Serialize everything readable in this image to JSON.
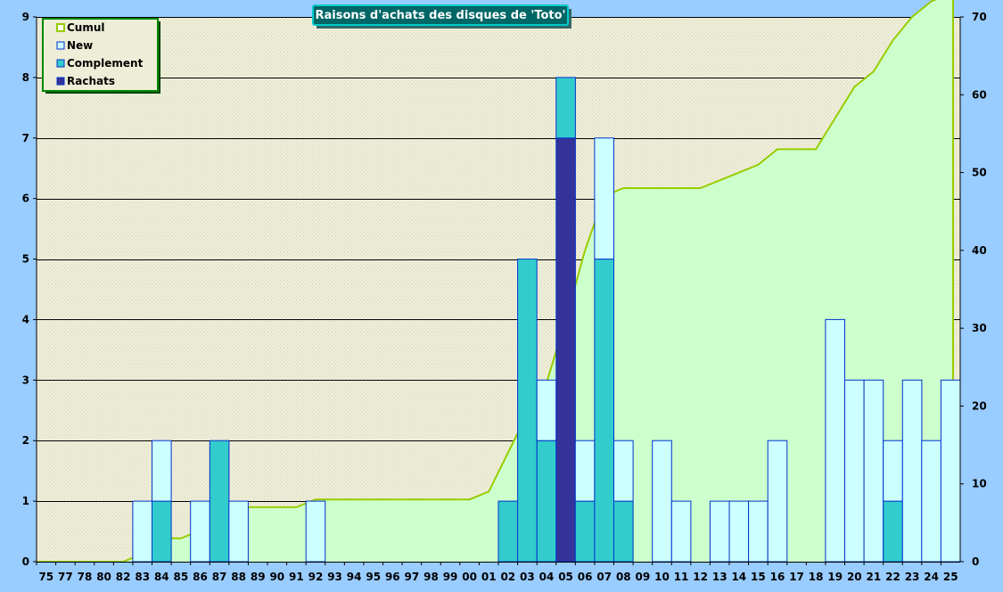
{
  "chart_data": {
    "type": "bar",
    "title": "Raisons d'achats des disques de 'Toto'",
    "categories": [
      "75",
      "77",
      "78",
      "80",
      "82",
      "83",
      "84",
      "85",
      "86",
      "87",
      "88",
      "89",
      "90",
      "91",
      "92",
      "93",
      "94",
      "95",
      "96",
      "97",
      "98",
      "99",
      "00",
      "01",
      "02",
      "03",
      "04",
      "05",
      "06",
      "07",
      "08",
      "09",
      "10",
      "11",
      "12",
      "13",
      "14",
      "15",
      "16",
      "17",
      "18",
      "19",
      "20",
      "21",
      "22",
      "23",
      "24",
      "25"
    ],
    "stacked": true,
    "series": [
      {
        "name": "Rachats",
        "axis": "left",
        "values": [
          0,
          0,
          0,
          0,
          0,
          0,
          0,
          0,
          0,
          0,
          0,
          0,
          0,
          0,
          0,
          0,
          0,
          0,
          0,
          0,
          0,
          0,
          0,
          0,
          0,
          0,
          0,
          7,
          0,
          0,
          0,
          0,
          0,
          0,
          0,
          0,
          0,
          0,
          0,
          0,
          0,
          0,
          0,
          0,
          0,
          0,
          0,
          0
        ]
      },
      {
        "name": "Complement",
        "axis": "left",
        "values": [
          0,
          0,
          0,
          0,
          0,
          0,
          1,
          0,
          0,
          2,
          0,
          0,
          0,
          0,
          0,
          0,
          0,
          0,
          0,
          0,
          0,
          0,
          0,
          0,
          1,
          5,
          2,
          1,
          1,
          5,
          1,
          0,
          0,
          0,
          0,
          0,
          0,
          0,
          0,
          0,
          0,
          0,
          0,
          0,
          1,
          0,
          0,
          0
        ]
      },
      {
        "name": "New",
        "axis": "left",
        "values": [
          0,
          0,
          0,
          0,
          0,
          1,
          1,
          0,
          1,
          0,
          1,
          0,
          0,
          0,
          1,
          0,
          0,
          0,
          0,
          0,
          0,
          0,
          0,
          0,
          0,
          0,
          1,
          0,
          1,
          2,
          1,
          0,
          2,
          1,
          0,
          1,
          1,
          1,
          2,
          0,
          0,
          4,
          3,
          3,
          1,
          3,
          2,
          3
        ]
      },
      {
        "name": "Cumul",
        "type": "area",
        "axis": "right",
        "values": [
          0,
          0,
          0,
          0,
          0,
          1,
          3,
          3,
          4,
          6,
          7,
          7,
          7,
          7,
          8,
          8,
          8,
          8,
          8,
          8,
          8,
          8,
          8,
          9,
          14,
          19,
          23,
          31,
          40,
          47,
          48,
          48,
          48,
          48,
          48,
          49,
          50,
          51,
          53,
          53,
          53,
          57,
          61,
          63,
          67,
          70,
          72,
          73
        ]
      }
    ],
    "ylim": [
      0,
      9
    ],
    "yticks": [
      0,
      1,
      2,
      3,
      4,
      5,
      6,
      7,
      8,
      9
    ],
    "y2lim": [
      0,
      70
    ],
    "y2ticks": [
      0,
      10,
      20,
      30,
      40,
      50,
      60,
      70
    ],
    "legend_position": "top-left",
    "grid": true,
    "colors": {
      "background": "#99ccff",
      "plot": "#eeeed8",
      "Cumul": "#99cc00",
      "Cumul_fill": "#ccffcc",
      "New": "#ccffff",
      "Complement": "#33cccc",
      "Rachats": "#333399",
      "bar_outline": "#0033cc",
      "title_bg": "#006666",
      "title_border": "#00cccc"
    }
  }
}
